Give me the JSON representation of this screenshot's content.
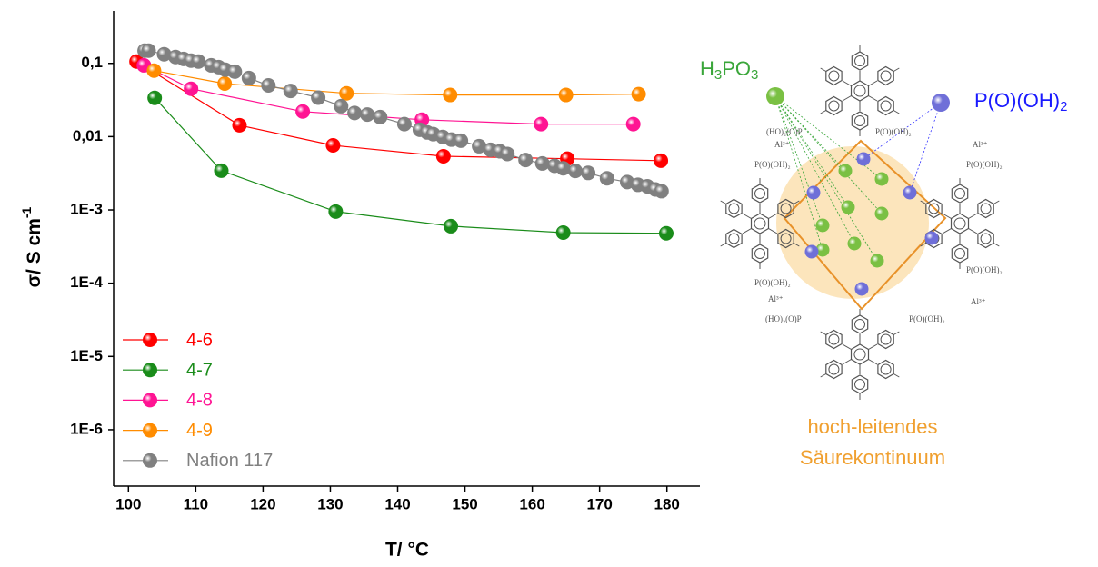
{
  "chart_data": {
    "type": "line",
    "xlabel": "T/ °C",
    "ylabel": "σ/ S cm",
    "ylabel_sup": "-1",
    "log_y": true,
    "legend": "lower left",
    "xlim": [
      97.8,
      184.9
    ],
    "xticks": [
      100,
      110,
      120,
      130,
      140,
      150,
      160,
      170,
      180
    ],
    "ylim": [
      1.7e-07,
      0.52
    ],
    "yticks": [
      {
        "value": 0.1,
        "label": "0,1"
      },
      {
        "value": 0.01,
        "label": "0,01"
      },
      {
        "value": 0.001,
        "label": "1E-3"
      },
      {
        "value": 0.0001,
        "label": "1E-4"
      },
      {
        "value": 1e-05,
        "label": "1E-5"
      },
      {
        "value": 1e-06,
        "label": "1E-6"
      }
    ],
    "series": [
      {
        "name": "4-6",
        "color": "#ff0000",
        "x": [
          101.2,
          116.5,
          130.4,
          146.8,
          165.2,
          179.1
        ],
        "values": [
          0.106,
          0.0143,
          0.0076,
          0.0054,
          0.005,
          0.0047
        ]
      },
      {
        "name": "4-7",
        "color": "#1a8c1a",
        "x": [
          103.9,
          113.8,
          130.8,
          147.9,
          164.6,
          179.9
        ],
        "values": [
          0.0338,
          0.00343,
          0.00095,
          0.0006,
          0.00049,
          0.00048
        ]
      },
      {
        "name": "4-8",
        "color": "#ff1493",
        "x": [
          102.3,
          109.3,
          125.9,
          143.6,
          161.3,
          175.0
        ],
        "values": [
          0.094,
          0.045,
          0.022,
          0.017,
          0.0148,
          0.0148
        ]
      },
      {
        "name": "4-9",
        "color": "#ff8c00",
        "x": [
          103.8,
          114.3,
          132.4,
          147.8,
          165.0,
          175.8
        ],
        "values": [
          0.0796,
          0.053,
          0.039,
          0.037,
          0.037,
          0.038
        ]
      },
      {
        "name": "Nafion 117",
        "color": "#808080",
        "x": [
          102.4,
          103.0,
          105.3,
          107.0,
          108.2,
          109.3,
          110.4,
          112.3,
          113.4,
          114.4,
          115.8,
          117.9,
          120.8,
          124.1,
          128.2,
          131.6,
          133.6,
          135.5,
          137.4,
          141.0,
          143.3,
          144.4,
          145.3,
          146.7,
          148.0,
          149.4,
          152.1,
          153.8,
          155.2,
          156.3,
          159.0,
          161.5,
          163.3,
          164.6,
          166.4,
          168.3,
          171.1,
          174.1,
          175.7,
          177.1,
          178.3,
          179.2
        ],
        "values": [
          0.149,
          0.149,
          0.133,
          0.122,
          0.115,
          0.109,
          0.106,
          0.094,
          0.089,
          0.082,
          0.077,
          0.063,
          0.05,
          0.042,
          0.034,
          0.026,
          0.021,
          0.02,
          0.0185,
          0.0148,
          0.0124,
          0.0114,
          0.0108,
          0.0099,
          0.0091,
          0.0088,
          0.0074,
          0.0066,
          0.0063,
          0.0058,
          0.0048,
          0.0043,
          0.004,
          0.0037,
          0.0034,
          0.0032,
          0.0027,
          0.0024,
          0.0022,
          0.0021,
          0.0019,
          0.0018
        ]
      }
    ]
  },
  "diagram": {
    "h3po3": [
      "H",
      "3",
      "PO",
      "3"
    ],
    "phosphonic": [
      "P(O)(OH)",
      "2"
    ],
    "caption": [
      "hoch-leitendes",
      "Säurekontinuum"
    ],
    "small_labels": [
      "(HO)₂(O)P",
      "P(O)(OH)₂",
      "Al³⁺",
      "Al³⁺",
      "P(O)(OH)₂",
      "P(O)(OH)₂",
      "P(O)(OH)₂",
      "P(O)(OH)₂",
      "Al³⁺",
      "Al³⁺",
      "(HO)₂(O)P",
      "P(O)(OH)₂"
    ]
  }
}
